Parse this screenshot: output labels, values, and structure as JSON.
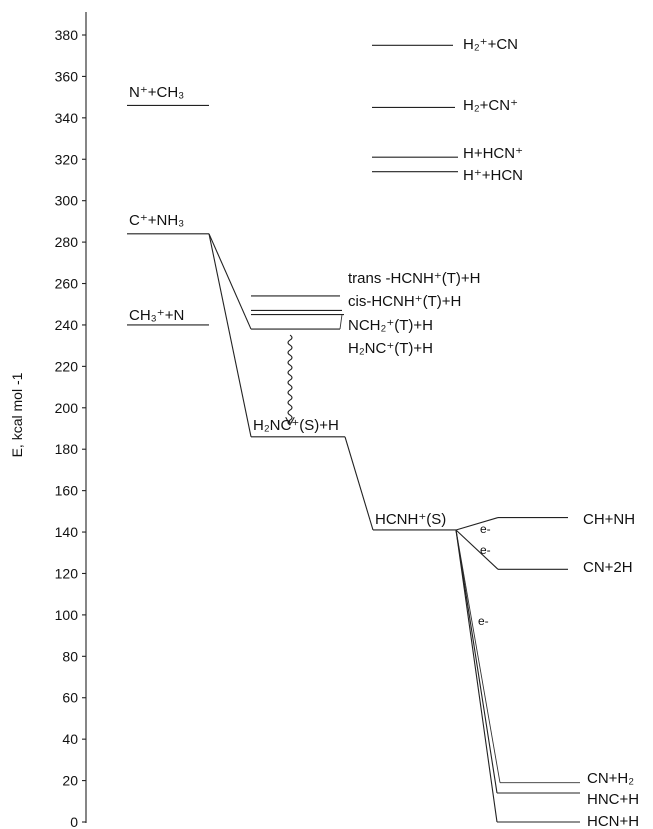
{
  "axis": {
    "ylabel": "E, kcal mol -1",
    "ticks": [
      0,
      20,
      40,
      60,
      80,
      100,
      120,
      140,
      160,
      180,
      200,
      220,
      240,
      260,
      280,
      300,
      320,
      340,
      360,
      380
    ],
    "ylim": [
      0,
      390
    ]
  },
  "levels": {
    "h2_cn": {
      "label": "H₂⁺+CN",
      "energy": 375
    },
    "n_ch3": {
      "label": "N⁺+CH₃",
      "energy": 346
    },
    "h2_cnp": {
      "label": "H₂+CN⁺",
      "energy": 345
    },
    "h_hcn": {
      "label": "H+HCN⁺",
      "energy": 321
    },
    "hp_hcn": {
      "label": "H⁺+HCN",
      "energy": 314
    },
    "c_nh3": {
      "label": "C⁺+NH₃",
      "energy": 284
    },
    "trans": {
      "label": "trans -HCNH⁺(T)+H",
      "energy": 254
    },
    "cis": {
      "label": "cis-HCNH⁺(T)+H",
      "energy": 247
    },
    "ch3_n": {
      "label": "CH₃⁺+N",
      "energy": 240
    },
    "nch2": {
      "label": "NCH₂⁺(T)+H",
      "energy": 245
    },
    "h2nc_t": {
      "label": "H₂NC⁺(T)+H",
      "energy": 238
    },
    "h2nc_s": {
      "label": "H₂NC⁺(S)+H",
      "energy": 186
    },
    "hcnh_s": {
      "label": "HCNH⁺(S)",
      "energy": 141
    },
    "ch_nh": {
      "label": "CH+NH",
      "energy": 147
    },
    "cn_2h": {
      "label": "CN+2H",
      "energy": 122
    },
    "cn_h2": {
      "label": "CN+H₂",
      "energy": 19
    },
    "hnc_h": {
      "label": "HNC+H",
      "energy": 14
    },
    "hcn_h": {
      "label": "HCN+H",
      "energy": 0
    }
  },
  "electron_labels": [
    "e-",
    "e-",
    "e-"
  ]
}
